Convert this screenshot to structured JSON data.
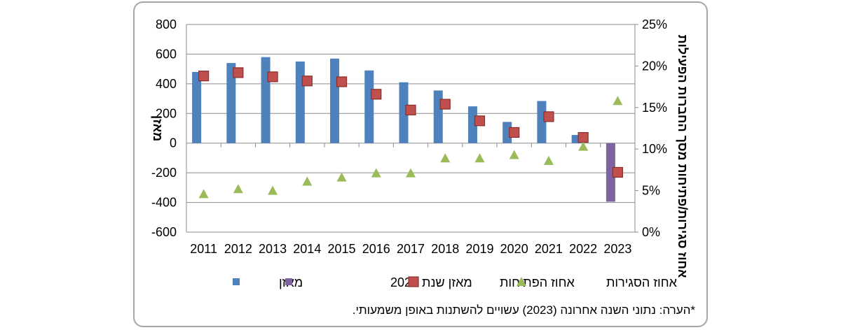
{
  "chart_data": {
    "type": "bar",
    "categories": [
      "2011",
      "2012",
      "2013",
      "2014",
      "2015",
      "2016",
      "2017",
      "2018",
      "2019",
      "2020",
      "2021",
      "2022",
      "2023"
    ],
    "series": [
      {
        "name": "מאזן",
        "kind": "bar",
        "axis": "left",
        "color": "#4f81bd",
        "values": [
          480,
          540,
          580,
          550,
          570,
          490,
          410,
          355,
          248,
          143,
          284,
          55,
          null
        ]
      },
      {
        "name": "מאזן שנת 2023",
        "kind": "bar",
        "axis": "left",
        "color": "#8064a2",
        "values": [
          null,
          null,
          null,
          null,
          null,
          null,
          null,
          null,
          null,
          null,
          null,
          null,
          -395
        ]
      },
      {
        "name": "אחוז הפתיחות",
        "kind": "marker-square",
        "axis": "right",
        "color": "#c0504d",
        "values": [
          18.8,
          19.2,
          18.7,
          18.2,
          18.1,
          16.6,
          14.7,
          15.4,
          13.4,
          12.0,
          13.9,
          11.4,
          7.2
        ]
      },
      {
        "name": "אחוז הסגירות",
        "kind": "marker-triangle",
        "axis": "right",
        "color": "#9bbb59",
        "values": [
          4.6,
          5.2,
          5.0,
          6.1,
          6.6,
          7.1,
          7.1,
          8.9,
          8.9,
          9.3,
          8.6,
          10.3,
          15.8
        ]
      }
    ],
    "ylabel": "מאזן",
    "y2label": "אחוז סגירות/פתיחות מסך החברות הפעילות",
    "ylim": [
      -600,
      800
    ],
    "yticks": [
      "800",
      "600",
      "400",
      "200",
      "0",
      "-200",
      "-400",
      "-600"
    ],
    "y2lim": [
      0,
      25
    ],
    "y2ticks": [
      "25%",
      "20%",
      "15%",
      "10%",
      "5%",
      "0%"
    ],
    "grid": "horizontal",
    "legend_position": "bottom"
  },
  "footnote": "*הערה: נתוני השנה אחרונה (2023) עשויים להשתנות באופן משמעותי."
}
